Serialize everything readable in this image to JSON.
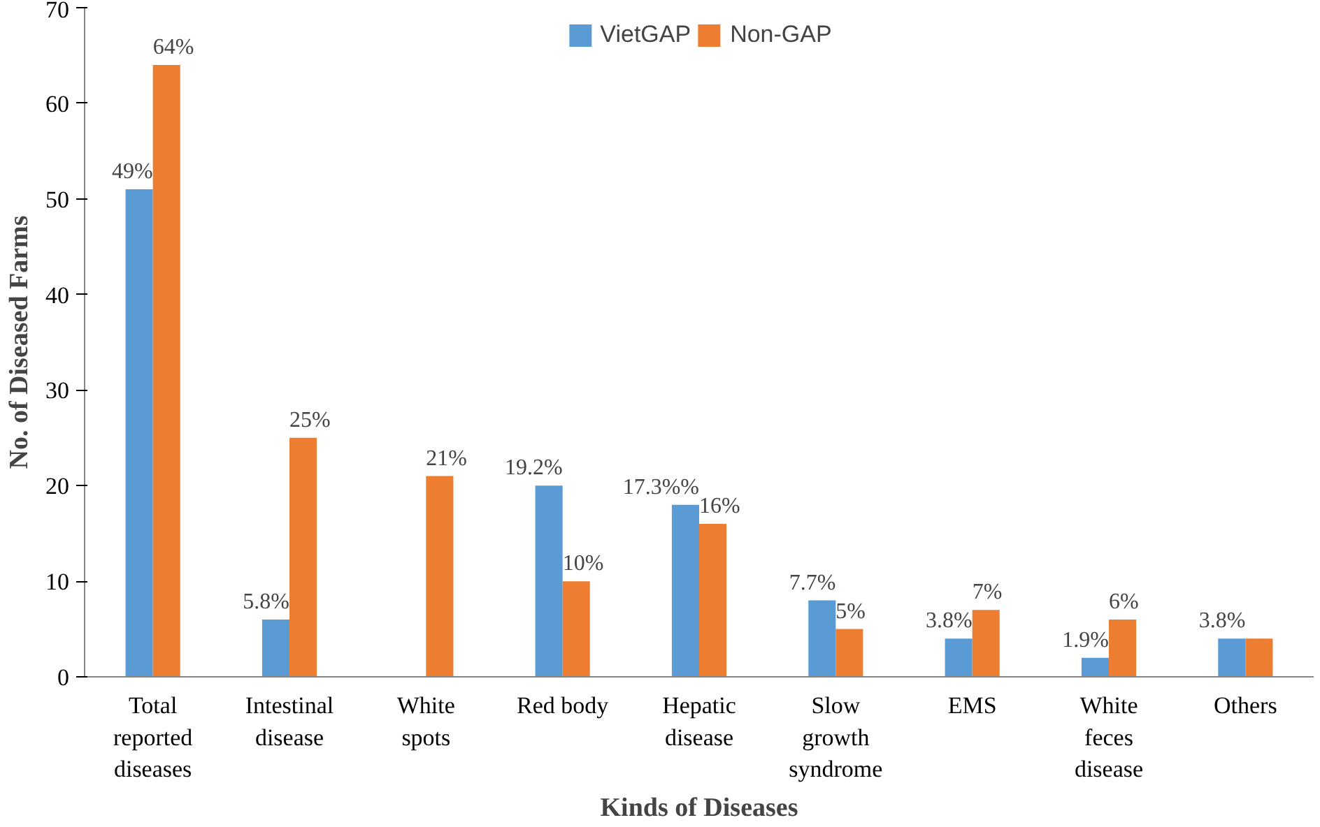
{
  "chart_data": {
    "type": "bar",
    "xlabel": "Kinds of Diseases",
    "ylabel": "No. of Diseased Farms",
    "categories": [
      "Total reported diseases",
      "Intestinal disease",
      "White spots",
      "Red body",
      "Hepatic disease",
      "Slow growth syndrome",
      "EMS",
      "White feces disease",
      "Others"
    ],
    "series": [
      {
        "name": "VietGAP",
        "color": "#5b9bd5",
        "values": [
          51,
          6,
          0,
          20,
          18,
          8,
          4,
          2,
          4
        ]
      },
      {
        "name": "Non-GAP",
        "color": "#ed7d31",
        "values": [
          64,
          25,
          21,
          10,
          16,
          5,
          7,
          6,
          4
        ],
        "value_labels": [
          "64%",
          "25%",
          "21%",
          "10%",
          "16%",
          "5%",
          "7%",
          "6%",
          null
        ]
      }
    ],
    "annotations": [
      {
        "text": "49%",
        "x": "Total reported diseases",
        "y": 51
      },
      {
        "text": "5.8%",
        "x": "Intestinal disease",
        "y": 6
      },
      {
        "text": "19.2%",
        "x": "Red body",
        "y": 20
      },
      {
        "text": "17.3%%",
        "x": "Hepatic disease",
        "y": 18
      },
      {
        "text": "7.7%",
        "x": "Slow growth syndrome",
        "y": 8
      },
      {
        "text": "3.8%",
        "x": "EMS",
        "y": 4
      },
      {
        "text": "1.9%",
        "x": "White feces disease",
        "y": 2
      },
      {
        "text": "3.8%",
        "x": "Others",
        "y": 4
      }
    ],
    "ylim": [
      0,
      70
    ],
    "yticks": [
      0,
      10,
      20,
      30,
      40,
      50,
      60,
      70
    ],
    "grid": false,
    "legend": "top"
  }
}
